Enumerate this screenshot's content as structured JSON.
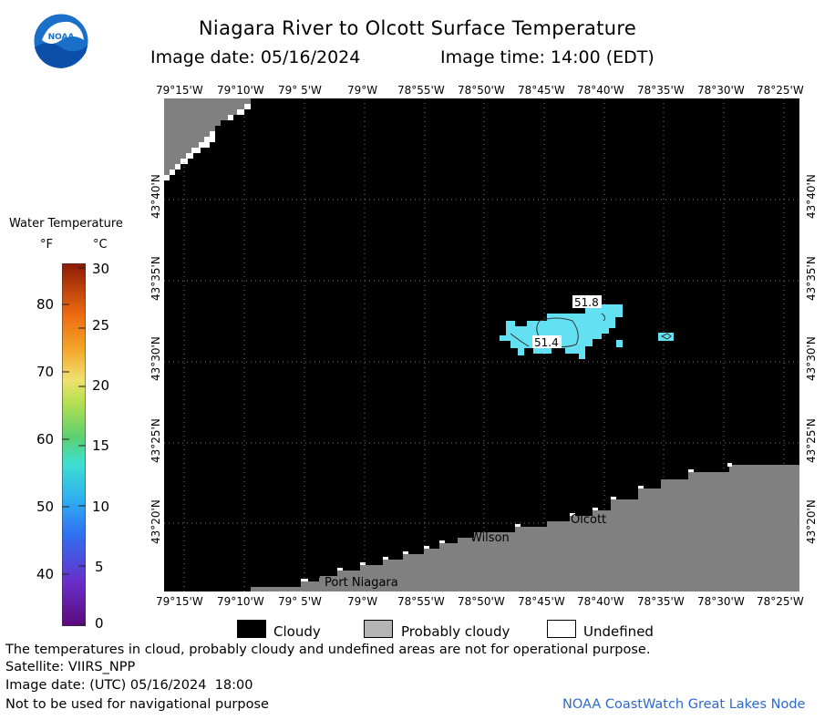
{
  "header": {
    "title": "Niagara River to Olcott Surface Temperature",
    "image_date": "Image date: 05/16/2024",
    "image_time": "Image time: 14:00 (EDT)",
    "logo_text": "NOAA"
  },
  "map": {
    "lon_labels": [
      "79°15'W",
      "79°10'W",
      "79° 5'W",
      "79°W",
      "78°55'W",
      "78°50'W",
      "78°45'W",
      "78°40'W",
      "78°35'W",
      "78°30'W",
      "78°25'W"
    ],
    "lat_labels": [
      "43°40'N",
      "43°35'N",
      "43°30'N",
      "43°25'N",
      "43°20'N"
    ],
    "places": [
      {
        "name": "Olcott"
      },
      {
        "name": "Wilson"
      },
      {
        "name": "Port Niagara"
      }
    ],
    "contour_labels": [
      "51.8",
      "51.4"
    ],
    "colors": {
      "cloudy": "#000000",
      "land": "#808080",
      "undefined": "#ffffff",
      "water_patch": "#63e0f2"
    }
  },
  "colorbar": {
    "title": "Water Temperature",
    "unit_f": "°F",
    "unit_c": "°C",
    "f_ticks": [
      "80",
      "70",
      "60",
      "50",
      "40"
    ],
    "c_ticks": [
      "30",
      "25",
      "20",
      "15",
      "10",
      "5",
      "0"
    ]
  },
  "legend": {
    "items": [
      {
        "label": "Cloudy",
        "color": "#000000"
      },
      {
        "label": "Probably cloudy",
        "color": "#b4b4b4"
      },
      {
        "label": "Undefined",
        "color": "#ffffff"
      }
    ]
  },
  "footer": {
    "disclaimer": "The temperatures in cloud, probably cloudy and undefined areas are not for operational purpose.",
    "satellite": "Satellite: VIIRS_NPP",
    "utc_date": "Image date: (UTC) 05/16/2024  18:00",
    "nav_warning": "Not to be used for navigational purpose",
    "credit": "NOAA CoastWatch Great Lakes Node"
  }
}
